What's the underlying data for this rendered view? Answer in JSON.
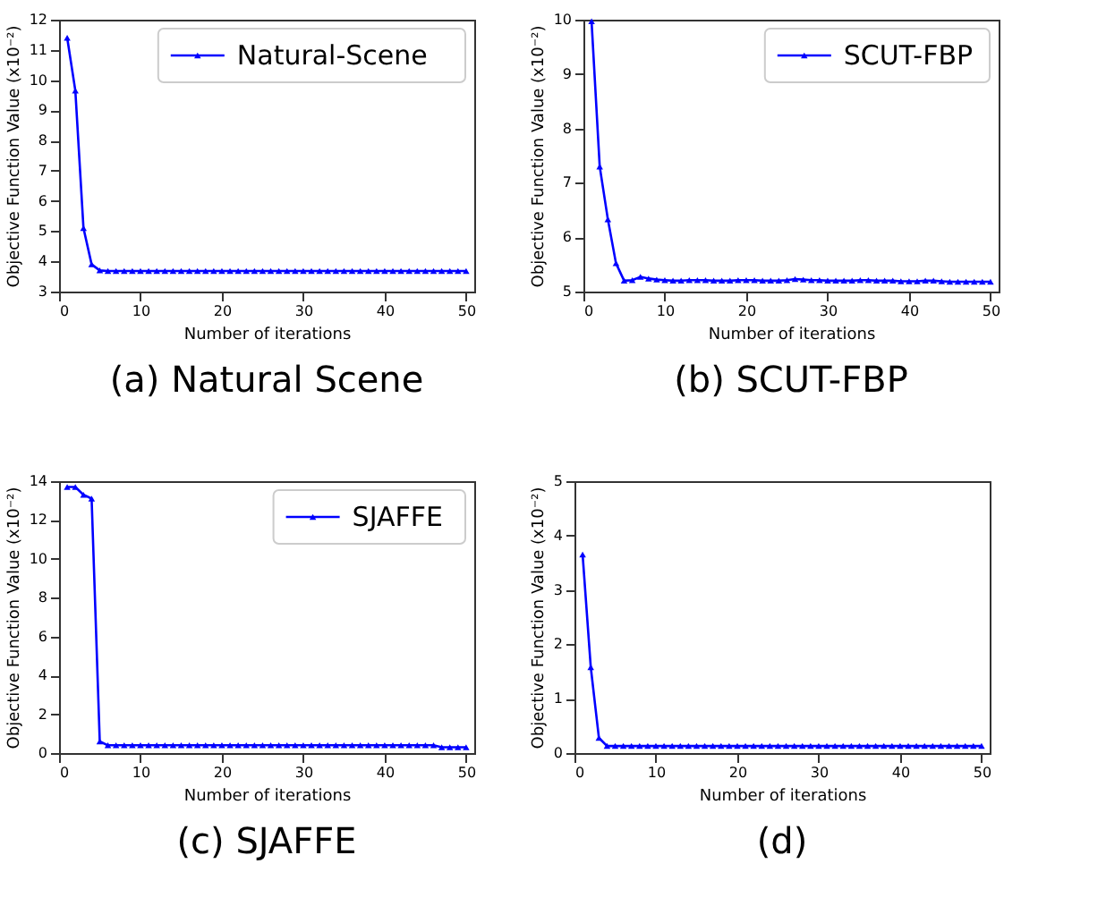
{
  "chart_data": [
    {
      "type": "line",
      "title": "(a) Natural Scene",
      "xlabel": "Number of iterations",
      "ylabel": "Objective Function Value (x10⁻²)",
      "x": [
        1,
        2,
        3,
        4,
        5,
        6,
        7,
        8,
        9,
        10,
        11,
        12,
        13,
        14,
        15,
        16,
        17,
        18,
        19,
        20,
        21,
        22,
        23,
        24,
        25,
        26,
        27,
        28,
        29,
        30,
        31,
        32,
        33,
        34,
        35,
        36,
        37,
        38,
        39,
        40,
        41,
        42,
        43,
        44,
        45,
        46,
        47,
        48,
        49,
        50
      ],
      "xlim": [
        0,
        51
      ],
      "xticks": [
        0,
        10,
        20,
        30,
        40,
        50
      ],
      "ylim": [
        3,
        12
      ],
      "yticks": [
        3,
        4,
        5,
        6,
        7,
        8,
        9,
        10,
        11,
        12
      ],
      "grid": false,
      "legend": "top right",
      "marker": "triangle",
      "line_style": "solid",
      "series": [
        {
          "name": "Natural-Scene",
          "color": "#0000ff",
          "values": [
            11.4,
            9.65,
            5.1,
            3.9,
            3.7,
            3.68,
            3.68,
            3.68,
            3.68,
            3.68,
            3.68,
            3.68,
            3.68,
            3.68,
            3.68,
            3.68,
            3.68,
            3.68,
            3.68,
            3.68,
            3.68,
            3.68,
            3.68,
            3.68,
            3.68,
            3.68,
            3.68,
            3.68,
            3.68,
            3.68,
            3.68,
            3.68,
            3.68,
            3.68,
            3.68,
            3.68,
            3.68,
            3.68,
            3.68,
            3.68,
            3.68,
            3.68,
            3.68,
            3.68,
            3.68,
            3.68,
            3.68,
            3.68,
            3.68,
            3.68
          ]
        }
      ]
    },
    {
      "type": "line",
      "title": "(b) SCUT-FBP",
      "xlabel": "Number of iterations",
      "ylabel": "Objective Function Value (x10⁻²)",
      "x": [
        1,
        2,
        3,
        4,
        5,
        6,
        7,
        8,
        9,
        10,
        11,
        12,
        13,
        14,
        15,
        16,
        17,
        18,
        19,
        20,
        21,
        22,
        23,
        24,
        25,
        26,
        27,
        28,
        29,
        30,
        31,
        32,
        33,
        34,
        35,
        36,
        37,
        38,
        39,
        40,
        41,
        42,
        43,
        44,
        45,
        46,
        47,
        48,
        49,
        50
      ],
      "xlim": [
        0,
        51
      ],
      "xticks": [
        0,
        10,
        20,
        30,
        40,
        50
      ],
      "ylim": [
        5,
        10
      ],
      "yticks": [
        5,
        6,
        7,
        8,
        9,
        10
      ],
      "grid": false,
      "legend": "top right",
      "marker": "triangle",
      "line_style": "solid",
      "series": [
        {
          "name": "SCUT-FBP",
          "color": "#0000ff",
          "values": [
            9.97,
            7.3,
            6.33,
            5.52,
            5.2,
            5.21,
            5.27,
            5.24,
            5.22,
            5.21,
            5.2,
            5.2,
            5.21,
            5.21,
            5.21,
            5.2,
            5.2,
            5.2,
            5.21,
            5.21,
            5.21,
            5.2,
            5.2,
            5.2,
            5.21,
            5.23,
            5.22,
            5.21,
            5.21,
            5.2,
            5.2,
            5.2,
            5.2,
            5.21,
            5.21,
            5.2,
            5.2,
            5.2,
            5.19,
            5.19,
            5.19,
            5.2,
            5.2,
            5.19,
            5.18,
            5.18,
            5.18,
            5.18,
            5.18,
            5.18
          ]
        }
      ]
    },
    {
      "type": "line",
      "title": "(c) SJAFFE",
      "xlabel": "Number of iterations",
      "ylabel": "Objective Function Value (x10⁻²)",
      "x": [
        1,
        2,
        3,
        4,
        5,
        6,
        7,
        8,
        9,
        10,
        11,
        12,
        13,
        14,
        15,
        16,
        17,
        18,
        19,
        20,
        21,
        22,
        23,
        24,
        25,
        26,
        27,
        28,
        29,
        30,
        31,
        32,
        33,
        34,
        35,
        36,
        37,
        38,
        39,
        40,
        41,
        42,
        43,
        44,
        45,
        46,
        47,
        48,
        49,
        50
      ],
      "xlim": [
        0,
        51
      ],
      "xticks": [
        0,
        10,
        20,
        30,
        40,
        50
      ],
      "ylim": [
        0,
        14
      ],
      "yticks": [
        0,
        2,
        4,
        6,
        8,
        10,
        12,
        14
      ],
      "grid": false,
      "legend": "top right",
      "marker": "triangle",
      "line_style": "solid",
      "series": [
        {
          "name": "SJAFFE",
          "color": "#0000ff",
          "values": [
            13.7,
            13.7,
            13.3,
            13.1,
            0.6,
            0.4,
            0.4,
            0.4,
            0.4,
            0.4,
            0.4,
            0.4,
            0.4,
            0.4,
            0.4,
            0.4,
            0.4,
            0.4,
            0.4,
            0.4,
            0.4,
            0.4,
            0.4,
            0.4,
            0.4,
            0.4,
            0.4,
            0.4,
            0.4,
            0.4,
            0.4,
            0.4,
            0.4,
            0.4,
            0.4,
            0.4,
            0.4,
            0.4,
            0.4,
            0.4,
            0.4,
            0.4,
            0.4,
            0.4,
            0.4,
            0.4,
            0.3,
            0.3,
            0.3,
            0.3
          ]
        }
      ]
    },
    {
      "type": "line",
      "title": "(d)",
      "xlabel": "Number of iterations",
      "ylabel": "Objective Function Value (x10⁻²)",
      "x": [
        1,
        2,
        3,
        4,
        5,
        6,
        7,
        8,
        9,
        10,
        11,
        12,
        13,
        14,
        15,
        16,
        17,
        18,
        19,
        20,
        21,
        22,
        23,
        24,
        25,
        26,
        27,
        28,
        29,
        30,
        31,
        32,
        33,
        34,
        35,
        36,
        37,
        38,
        39,
        40,
        41,
        42,
        43,
        44,
        45,
        46,
        47,
        48,
        49,
        50
      ],
      "xlim": [
        0,
        51
      ],
      "xticks": [
        0,
        10,
        20,
        30,
        40,
        50
      ],
      "ylim": [
        0,
        5
      ],
      "yticks": [
        0,
        1,
        2,
        3,
        4,
        5
      ],
      "grid": false,
      "marker": "triangle",
      "line_style": "solid",
      "series": [
        {
          "color": "#0000ff",
          "values": [
            3.65,
            1.58,
            0.28,
            0.13,
            0.13,
            0.13,
            0.13,
            0.13,
            0.13,
            0.13,
            0.13,
            0.13,
            0.13,
            0.13,
            0.13,
            0.13,
            0.13,
            0.13,
            0.13,
            0.13,
            0.13,
            0.13,
            0.13,
            0.13,
            0.13,
            0.13,
            0.13,
            0.13,
            0.13,
            0.13,
            0.13,
            0.13,
            0.13,
            0.13,
            0.13,
            0.13,
            0.13,
            0.13,
            0.13,
            0.13,
            0.13,
            0.13,
            0.13,
            0.13,
            0.13,
            0.13,
            0.13,
            0.13,
            0.13,
            0.13
          ]
        }
      ]
    }
  ]
}
